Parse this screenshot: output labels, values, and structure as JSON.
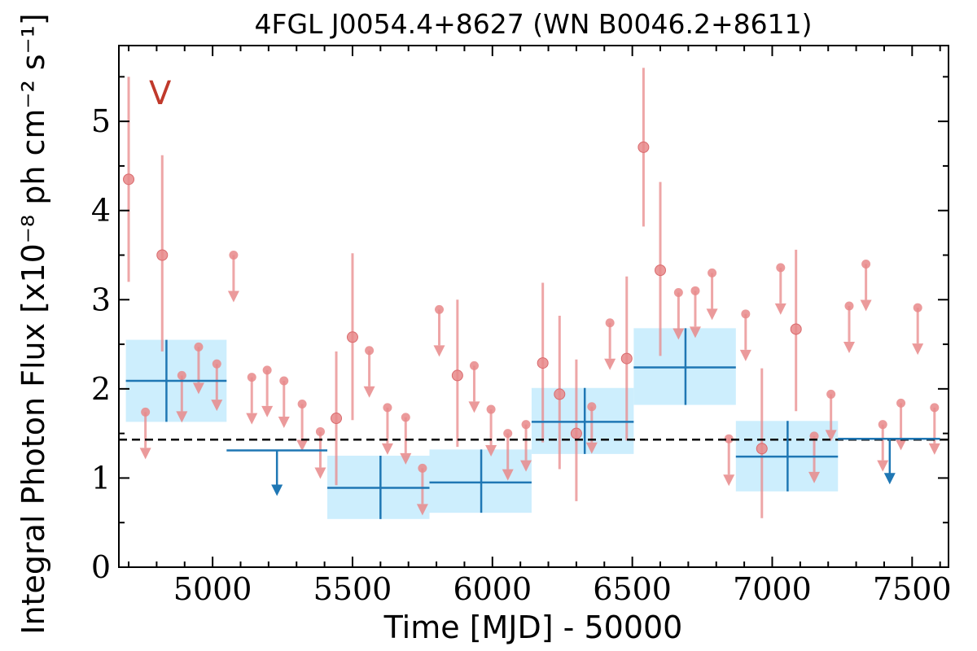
{
  "chart_data": {
    "type": "scatter",
    "title": "4FGL J0054.4+8627 (WN B0046.2+8611)",
    "xlabel": "Time [MJD] - 50000",
    "ylabel": "Integral Photon Flux [x10⁻⁸ ph cm⁻² s⁻¹]",
    "annotation": "V",
    "xlim": [
      4665,
      7630
    ],
    "ylim": [
      0,
      5.85
    ],
    "xticks": [
      5000,
      5500,
      6000,
      6500,
      7000,
      7500
    ],
    "yticks": [
      0,
      1,
      2,
      3,
      4,
      5
    ],
    "reference_level": 1.43,
    "colors": {
      "short_bins": "#e8888a",
      "long_bins": "#1f77b4",
      "long_bin_box": "#cdeefd",
      "reference_line": "#000000",
      "annotation": "#c0392b"
    },
    "short_bins": {
      "detections": [
        {
          "x": 4700,
          "y": 4.35,
          "lo": 3.2,
          "hi": 5.5
        },
        {
          "x": 4820,
          "y": 3.5,
          "lo": 2.42,
          "hi": 4.62
        },
        {
          "x": 5500,
          "y": 2.58,
          "lo": 1.65,
          "hi": 3.52
        },
        {
          "x": 5442,
          "y": 1.67,
          "lo": 0.92,
          "hi": 2.42
        },
        {
          "x": 5875,
          "y": 2.15,
          "lo": 1.35,
          "hi": 3.0
        },
        {
          "x": 6180,
          "y": 2.29,
          "lo": 1.4,
          "hi": 3.19
        },
        {
          "x": 6240,
          "y": 1.94,
          "lo": 1.1,
          "hi": 2.82
        },
        {
          "x": 6300,
          "y": 1.5,
          "lo": 0.74,
          "hi": 2.33
        },
        {
          "x": 6480,
          "y": 2.34,
          "lo": 1.42,
          "hi": 3.26
        },
        {
          "x": 6540,
          "y": 4.71,
          "lo": 3.82,
          "hi": 5.6
        },
        {
          "x": 6600,
          "y": 3.33,
          "lo": 2.37,
          "hi": 4.32
        },
        {
          "x": 6963,
          "y": 1.33,
          "lo": 0.55,
          "hi": 2.23
        },
        {
          "x": 7085,
          "y": 2.67,
          "lo": 1.75,
          "hi": 3.56
        }
      ],
      "upper_limits": [
        {
          "x": 4760,
          "y": 1.74
        },
        {
          "x": 4890,
          "y": 2.15
        },
        {
          "x": 4950,
          "y": 2.47
        },
        {
          "x": 5015,
          "y": 2.28
        },
        {
          "x": 5075,
          "y": 3.5
        },
        {
          "x": 5140,
          "y": 2.13
        },
        {
          "x": 5195,
          "y": 2.21
        },
        {
          "x": 5255,
          "y": 2.09
        },
        {
          "x": 5320,
          "y": 1.83
        },
        {
          "x": 5385,
          "y": 1.52
        },
        {
          "x": 5560,
          "y": 2.43
        },
        {
          "x": 5625,
          "y": 1.79
        },
        {
          "x": 5690,
          "y": 1.68
        },
        {
          "x": 5750,
          "y": 1.11
        },
        {
          "x": 5810,
          "y": 2.89
        },
        {
          "x": 5935,
          "y": 2.26
        },
        {
          "x": 5995,
          "y": 1.77
        },
        {
          "x": 6055,
          "y": 1.5
        },
        {
          "x": 6120,
          "y": 1.6
        },
        {
          "x": 6355,
          "y": 1.8
        },
        {
          "x": 6420,
          "y": 2.74
        },
        {
          "x": 6665,
          "y": 3.08
        },
        {
          "x": 6725,
          "y": 3.1
        },
        {
          "x": 6785,
          "y": 3.3
        },
        {
          "x": 6845,
          "y": 1.44
        },
        {
          "x": 6905,
          "y": 2.84
        },
        {
          "x": 7030,
          "y": 3.36
        },
        {
          "x": 7150,
          "y": 1.47
        },
        {
          "x": 7210,
          "y": 1.94
        },
        {
          "x": 7275,
          "y": 2.93
        },
        {
          "x": 7335,
          "y": 3.4
        },
        {
          "x": 7395,
          "y": 1.6
        },
        {
          "x": 7460,
          "y": 1.84
        },
        {
          "x": 7520,
          "y": 2.91
        },
        {
          "x": 7580,
          "y": 1.79
        }
      ]
    },
    "long_bins": {
      "detections": [
        {
          "x0": 4690,
          "x1": 5050,
          "y": 2.09,
          "lo": 1.63,
          "hi": 2.55,
          "xc": 4835
        },
        {
          "x0": 5410,
          "x1": 5775,
          "y": 0.89,
          "lo": 0.54,
          "hi": 1.25,
          "xc": 5600
        },
        {
          "x0": 5775,
          "x1": 6140,
          "y": 0.95,
          "lo": 0.61,
          "hi": 1.32,
          "xc": 5960
        },
        {
          "x0": 6140,
          "x1": 6505,
          "y": 1.63,
          "lo": 1.27,
          "hi": 2.01,
          "xc": 6330
        },
        {
          "x0": 6505,
          "x1": 6870,
          "y": 2.24,
          "lo": 1.82,
          "hi": 2.68,
          "xc": 6690
        },
        {
          "x0": 6870,
          "x1": 7235,
          "y": 1.24,
          "lo": 0.85,
          "hi": 1.64,
          "xc": 7055
        }
      ],
      "upper_limits": [
        {
          "x0": 5050,
          "x1": 5410,
          "y": 1.31,
          "xc": 5230
        },
        {
          "x0": 7235,
          "x1": 7600,
          "y": 1.44,
          "xc": 7420
        }
      ]
    }
  }
}
